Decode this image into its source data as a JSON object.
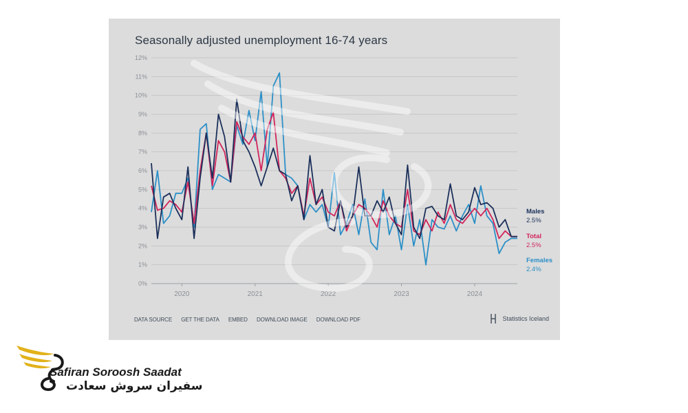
{
  "chart_title": "Seasonally adjusted unemployment 16-74 years",
  "footer_links": [
    "DATA SOURCE",
    "GET THE DATA",
    "EMBED",
    "DOWNLOAD IMAGE",
    "DOWNLOAD PDF"
  ],
  "source_brand": "Statistics Iceland",
  "company_name_en": "Safiran Soroosh Saadat",
  "company_name_fa": "سفیران سروش سعادت",
  "colors": {
    "males": "#1b2f5a",
    "total": "#d1245a",
    "females": "#2b8fc7",
    "card_bg": "#dcdcdc",
    "logo_gold": "#e2b21b"
  },
  "chart_data": {
    "type": "line",
    "title": "Seasonally adjusted unemployment 16-74 years",
    "xlabel": "",
    "ylabel": "",
    "ylim": [
      0,
      12
    ],
    "yticks": [
      "0%",
      "1%",
      "2%",
      "3%",
      "4%",
      "5%",
      "6%",
      "7%",
      "8%",
      "9%",
      "10%",
      "11%",
      "12%"
    ],
    "xticks": [
      "2020",
      "2021",
      "2022",
      "2023",
      "2024"
    ],
    "x_start": "2019-08",
    "x_end": "2024-08",
    "grid": true,
    "legend": "end-of-line labels on right",
    "series": [
      {
        "name": "Males",
        "end_label": "2.5%",
        "values": [
          6.4,
          2.4,
          4.6,
          4.8,
          4.0,
          3.4,
          6.2,
          2.4,
          5.6,
          8.0,
          5.6,
          9.0,
          7.8,
          5.4,
          9.8,
          7.6,
          7.0,
          6.2,
          5.2,
          6.2,
          7.2,
          6.0,
          5.8,
          4.4,
          5.2,
          3.4,
          6.8,
          4.2,
          5.0,
          3.0,
          2.8,
          4.4,
          3.0,
          3.6,
          6.2,
          3.6,
          3.6,
          4.4,
          3.8,
          4.6,
          3.2,
          2.6,
          6.3,
          3.0,
          2.4,
          4.0,
          4.1,
          3.6,
          3.4,
          5.3,
          3.6,
          3.4,
          3.8,
          5.1,
          4.2,
          4.3,
          4.0,
          3.0,
          3.4,
          2.5,
          2.5
        ]
      },
      {
        "name": "Total",
        "end_label": "2.5%",
        "values": [
          5.2,
          3.9,
          4.0,
          4.4,
          4.2,
          3.8,
          5.4,
          3.2,
          6.0,
          8.0,
          5.2,
          7.6,
          7.0,
          5.4,
          8.6,
          7.8,
          7.4,
          8.0,
          6.0,
          8.2,
          9.1,
          6.0,
          5.6,
          4.8,
          5.2,
          3.6,
          5.6,
          4.2,
          4.6,
          3.8,
          3.6,
          4.4,
          2.8,
          3.6,
          4.2,
          4.0,
          3.6,
          3.0,
          4.4,
          3.6,
          3.2,
          3.0,
          5.0,
          2.8,
          2.6,
          3.4,
          2.8,
          3.8,
          3.2,
          4.2,
          3.4,
          3.2,
          3.6,
          4.0,
          3.6,
          4.0,
          3.4,
          2.4,
          2.8,
          2.5,
          2.5
        ]
      },
      {
        "name": "Females",
        "end_label": "2.4%",
        "values": [
          3.8,
          6.0,
          3.2,
          3.6,
          4.8,
          4.8,
          5.6,
          3.0,
          8.2,
          8.5,
          5.0,
          5.8,
          5.6,
          5.4,
          8.4,
          7.4,
          9.2,
          7.6,
          10.2,
          6.2,
          10.5,
          11.2,
          5.8,
          5.6,
          5.2,
          3.4,
          4.2,
          3.8,
          4.2,
          3.0,
          5.9,
          2.6,
          3.2,
          4.2,
          2.6,
          4.5,
          2.2,
          1.8,
          5.0,
          2.6,
          3.6,
          1.8,
          4.2,
          2.0,
          3.4,
          1.0,
          3.4,
          3.0,
          2.9,
          3.6,
          2.8,
          3.6,
          4.2,
          3.2,
          5.2,
          3.6,
          3.2,
          1.6,
          2.2,
          2.4,
          2.4
        ]
      }
    ]
  }
}
